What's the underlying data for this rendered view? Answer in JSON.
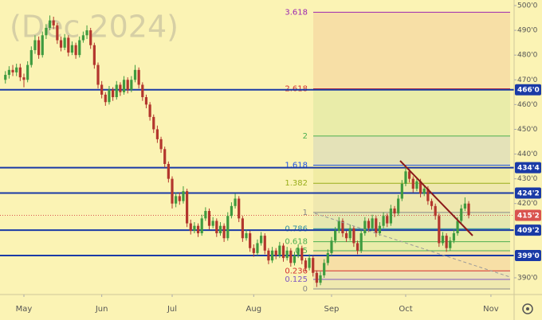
{
  "chart_data": {
    "type": "candlestick",
    "watermark": "(Dec 2024)",
    "up_color": "#3f9b3f",
    "down_color": "#b3362d",
    "xlim": [
      -1.45,
      137.25
    ],
    "ylim": [
      383.24,
      502.25
    ],
    "xticks": [
      {
        "value": 5,
        "label": "May"
      },
      {
        "value": 26,
        "label": "Jun"
      },
      {
        "value": 45,
        "label": "Jul"
      },
      {
        "value": 67,
        "label": "Aug"
      },
      {
        "value": 88,
        "label": "Sep"
      },
      {
        "value": 108,
        "label": "Oct"
      },
      {
        "value": 131,
        "label": "Nov"
      }
    ],
    "yticks": [
      {
        "value": 500,
        "label": "500'0"
      },
      {
        "value": 490,
        "label": "490'0"
      },
      {
        "value": 480,
        "label": "480'0"
      },
      {
        "value": 470,
        "label": "470'0"
      },
      {
        "value": 460,
        "label": "460'0"
      },
      {
        "value": 450,
        "label": "450'0"
      },
      {
        "value": 440,
        "label": "440'0"
      },
      {
        "value": 430,
        "label": "430'0"
      },
      {
        "value": 420,
        "label": "420'0"
      },
      {
        "value": 390,
        "label": "390'0"
      }
    ],
    "levels": [
      {
        "value": 466,
        "label": "466'0"
      },
      {
        "value": 434.5,
        "label": "434'4"
      },
      {
        "value": 424.25,
        "label": "424'2"
      },
      {
        "value": 409.25,
        "label": "409'2"
      },
      {
        "value": 399,
        "label": "399'0"
      }
    ],
    "level_color": "#1a3aa6",
    "last_price": {
      "value": 415.25,
      "label": "415'2",
      "color": "#d9534f"
    },
    "fib": [
      {
        "ratio": 3.618,
        "price": 497.3,
        "color": "#9c27b0"
      },
      {
        "ratio": 2.618,
        "price": 466.4,
        "color": "#d32f2f"
      },
      {
        "ratio": 2,
        "price": 447.3,
        "color": "#4caf50"
      },
      {
        "ratio": 1.618,
        "price": 435.5,
        "color": "#1e53e5"
      },
      {
        "ratio": 1.382,
        "price": 428.2,
        "color": "#9aae1c"
      },
      {
        "ratio": 1,
        "price": 416.4,
        "color": "#888888"
      },
      {
        "ratio": 0.786,
        "price": 409.8,
        "color": "#2a8ca0"
      },
      {
        "ratio": 0.618,
        "price": 404.6,
        "color": "#4caf50"
      },
      {
        "ratio": 0.5,
        "price": 400.95,
        "color": "#4caf50"
      },
      {
        "ratio": 0.236,
        "price": 392.79,
        "color": "#d32f2f"
      },
      {
        "ratio": 0.125,
        "price": 389.36,
        "color": "#7e57c2"
      },
      {
        "ratio": 0,
        "price": 385.5,
        "color": "#888888"
      }
    ],
    "ohlc": [
      [
        470,
        473.5,
        468.5,
        472
      ],
      [
        472,
        475.5,
        470.5,
        474
      ],
      [
        474,
        476,
        471.5,
        473
      ],
      [
        473,
        476.5,
        471.5,
        475
      ],
      [
        475,
        476.5,
        469.5,
        471
      ],
      [
        471,
        472.5,
        467,
        470
      ],
      [
        470,
        477.5,
        469,
        476
      ],
      [
        476,
        483.5,
        475,
        482
      ],
      [
        482,
        488,
        480.5,
        486
      ],
      [
        486,
        487.5,
        478.5,
        480
      ],
      [
        480,
        489.5,
        479,
        488
      ],
      [
        488,
        492.5,
        486.5,
        491
      ],
      [
        491,
        496,
        490,
        494
      ],
      [
        494,
        495.5,
        490.5,
        492
      ],
      [
        492,
        493,
        484.5,
        486
      ],
      [
        486,
        487.5,
        481.5,
        483
      ],
      [
        483,
        488.5,
        482,
        487
      ],
      [
        487,
        488,
        479.5,
        481
      ],
      [
        481,
        485.5,
        480,
        484
      ],
      [
        484,
        485,
        478.5,
        480
      ],
      [
        480,
        487.5,
        479,
        486
      ],
      [
        486,
        489.5,
        485,
        488
      ],
      [
        488,
        492,
        486.5,
        490
      ],
      [
        490,
        491,
        482.5,
        484
      ],
      [
        484,
        485,
        474.5,
        476
      ],
      [
        476,
        477,
        466.5,
        468
      ],
      [
        468,
        469.5,
        462.5,
        464
      ],
      [
        464,
        465,
        459.5,
        461
      ],
      [
        461,
        467.5,
        460,
        466
      ],
      [
        466,
        467,
        461.5,
        463
      ],
      [
        463,
        469.5,
        462,
        468
      ],
      [
        468,
        469,
        463.5,
        465
      ],
      [
        465,
        471.5,
        464,
        470
      ],
      [
        470,
        471,
        464.5,
        466
      ],
      [
        466,
        471.5,
        465,
        470
      ],
      [
        470,
        476,
        469,
        474
      ],
      [
        474,
        475,
        466.5,
        468
      ],
      [
        468,
        469,
        461.5,
        463
      ],
      [
        463,
        464,
        458.5,
        460
      ],
      [
        460,
        461,
        453.5,
        455
      ],
      [
        455,
        456,
        448.5,
        450
      ],
      [
        450,
        451.5,
        444.5,
        446
      ],
      [
        446,
        447,
        440.5,
        442
      ],
      [
        442,
        443,
        434.5,
        436
      ],
      [
        436,
        437,
        428.5,
        430
      ],
      [
        430,
        431,
        418,
        420
      ],
      [
        420,
        424.5,
        418.5,
        423
      ],
      [
        423,
        424.5,
        419.5,
        421
      ],
      [
        421,
        427,
        420,
        425
      ],
      [
        425,
        426,
        410.5,
        412
      ],
      [
        412,
        413.5,
        407.5,
        409
      ],
      [
        409,
        412.5,
        408,
        411
      ],
      [
        411,
        412,
        406.5,
        408
      ],
      [
        408,
        415.5,
        407,
        414
      ],
      [
        414,
        418.5,
        413,
        417
      ],
      [
        417,
        418,
        409.5,
        411
      ],
      [
        411,
        414.5,
        410,
        413
      ],
      [
        413,
        414,
        406.5,
        408
      ],
      [
        408,
        412.5,
        407,
        411
      ],
      [
        411,
        412,
        404.5,
        406
      ],
      [
        406,
        416.5,
        405,
        415
      ],
      [
        415,
        420.5,
        414,
        419
      ],
      [
        419,
        424,
        418,
        422
      ],
      [
        422,
        423,
        412.5,
        414
      ],
      [
        414,
        415,
        404.5,
        406
      ],
      [
        406,
        409.5,
        405,
        408
      ],
      [
        408,
        409,
        400.5,
        402
      ],
      [
        402,
        403.5,
        398.5,
        400
      ],
      [
        400,
        405.5,
        399,
        404
      ],
      [
        404,
        408.5,
        403,
        407
      ],
      [
        407,
        408,
        399.5,
        401
      ],
      [
        401,
        402,
        395.5,
        397
      ],
      [
        397,
        402.5,
        396,
        401
      ],
      [
        401,
        402,
        397.5,
        399
      ],
      [
        399,
        404.5,
        398,
        403
      ],
      [
        403,
        404,
        396.5,
        398
      ],
      [
        398,
        402.5,
        397,
        401
      ],
      [
        401,
        402,
        394.5,
        396
      ],
      [
        396,
        400.5,
        395,
        399
      ],
      [
        399,
        403.5,
        398,
        402
      ],
      [
        402,
        403,
        395.5,
        397
      ],
      [
        397,
        398,
        392.5,
        394
      ],
      [
        394,
        399.5,
        393,
        398
      ],
      [
        398,
        399,
        390.5,
        392
      ],
      [
        392,
        393,
        386.3,
        388
      ],
      [
        388,
        392.5,
        387,
        391
      ],
      [
        391,
        397.5,
        390,
        396
      ],
      [
        396,
        401.5,
        395,
        400
      ],
      [
        400,
        406.5,
        399,
        405
      ],
      [
        405,
        410.5,
        404,
        409
      ],
      [
        409,
        414.5,
        408,
        413
      ],
      [
        413,
        414,
        406.5,
        408
      ],
      [
        408,
        409,
        404.5,
        406
      ],
      [
        406,
        411.5,
        405,
        410
      ],
      [
        410,
        411,
        402.5,
        404
      ],
      [
        404,
        405,
        399.5,
        401
      ],
      [
        401,
        409.5,
        400,
        408
      ],
      [
        408,
        414.5,
        407,
        413
      ],
      [
        413,
        414,
        408.5,
        410
      ],
      [
        410,
        415.5,
        409,
        414
      ],
      [
        414,
        415,
        406.5,
        408
      ],
      [
        408,
        412.5,
        407,
        411
      ],
      [
        411,
        416.5,
        410,
        415
      ],
      [
        415,
        416,
        410.5,
        412
      ],
      [
        412,
        419.5,
        411,
        418
      ],
      [
        418,
        419,
        414.5,
        416
      ],
      [
        416,
        423.5,
        415,
        422
      ],
      [
        422,
        429.5,
        421,
        428
      ],
      [
        428,
        435,
        427,
        433
      ],
      [
        433,
        434,
        428.5,
        430
      ],
      [
        430,
        431,
        424.5,
        426
      ],
      [
        426,
        430.5,
        425,
        429
      ],
      [
        429,
        430,
        422.5,
        424
      ],
      [
        424,
        427.5,
        423,
        426
      ],
      [
        426,
        427,
        419.5,
        421
      ],
      [
        421,
        422,
        417.5,
        419
      ],
      [
        419,
        420,
        413.5,
        415
      ],
      [
        415,
        416,
        402.5,
        404
      ],
      [
        404,
        408.5,
        403,
        407
      ],
      [
        407,
        408,
        400.5,
        402
      ],
      [
        402,
        406.5,
        401,
        405
      ],
      [
        405,
        409.5,
        404,
        408
      ],
      [
        408,
        414.5,
        407,
        413
      ],
      [
        413,
        419.5,
        412,
        418
      ],
      [
        418,
        422.5,
        417,
        420
      ],
      [
        420,
        421,
        414,
        415.25
      ]
    ]
  }
}
